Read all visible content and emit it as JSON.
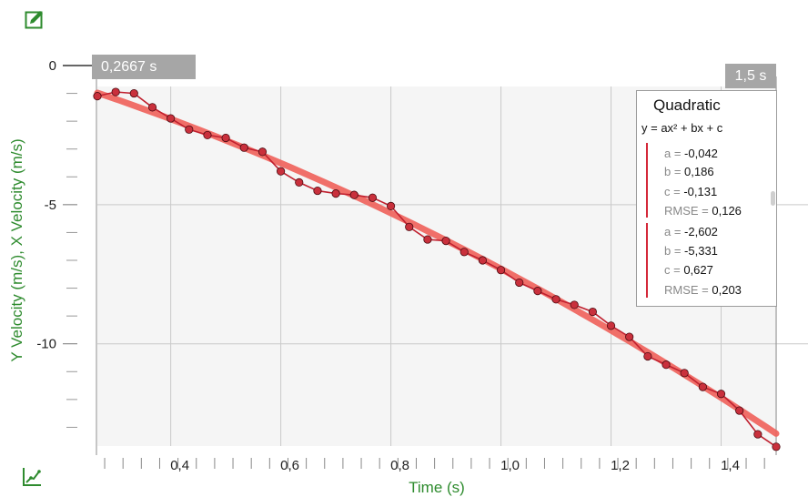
{
  "toolbar": {
    "edit_icon": "pencil-square-icon",
    "graph_tools_icon": "curve-fit-icon"
  },
  "markers": {
    "start_time": "0,2667 s",
    "end_time": "1,5 s"
  },
  "fit_panel": {
    "title": "Quadratic",
    "equation": "y = ax² + bx + c",
    "groups": [
      {
        "a_label": "a = ",
        "a": "-0,042",
        "b_label": "b = ",
        "b": "0,186",
        "c_label": "c = ",
        "c": "-0,131",
        "rmse_label": "RMSE = ",
        "rmse": "0,126"
      },
      {
        "a_label": "a = ",
        "a": "-2,602",
        "b_label": "b = ",
        "b": "-5,331",
        "c_label": "c = ",
        "c": "0,627",
        "rmse_label": "RMSE = ",
        "rmse": "0,203"
      }
    ]
  },
  "colors": {
    "data_line": "#c0202f",
    "data_point": "#c9303c",
    "fit_line": "#f0605a",
    "plot_bg": "#f5f5f5",
    "grid": "#c9c9c9",
    "axis_title": "#2e8b2e"
  },
  "chart_data": {
    "type": "line",
    "xlabel": "Time (s)",
    "ylabel": "Y Velocity (m/s), X Velocity (m/s)",
    "xlim": [
      0.2667,
      1.5
    ],
    "ylim": [
      -14,
      0
    ],
    "x_ticks": [
      0.4,
      0.6,
      0.8,
      1.0,
      1.2,
      1.4
    ],
    "x_tick_labels": [
      "0,4",
      "0,6",
      "0,8",
      "1,0",
      "1,2",
      "1,4"
    ],
    "y_ticks": [
      0,
      -5,
      -10
    ],
    "y_tick_labels": [
      "0",
      "-5",
      "-10"
    ],
    "grid": true,
    "series": [
      {
        "x": [
          0.2667,
          0.3,
          0.3333,
          0.3667,
          0.4,
          0.4333,
          0.4667,
          0.5,
          0.5333,
          0.5667,
          0.6,
          0.6333,
          0.6667,
          0.7,
          0.7333,
          0.7667,
          0.8,
          0.8333,
          0.8667,
          0.9,
          0.9333,
          0.9667,
          1.0,
          1.0333,
          1.0667,
          1.1,
          1.1333,
          1.1667,
          1.2,
          1.2333,
          1.2667,
          1.3,
          1.3333,
          1.3667,
          1.4,
          1.4333,
          1.4667,
          1.5
        ],
        "y": [
          -1.1,
          -0.95,
          -1.0,
          -1.5,
          -1.9,
          -2.3,
          -2.5,
          -2.6,
          -2.95,
          -3.1,
          -3.8,
          -4.2,
          -4.5,
          -4.6,
          -4.65,
          -4.75,
          -5.05,
          -5.8,
          -6.25,
          -6.3,
          -6.7,
          -7.0,
          -7.35,
          -7.8,
          -8.1,
          -8.4,
          -8.6,
          -8.85,
          -9.35,
          -9.75,
          -10.45,
          -10.75,
          -11.05,
          -11.55,
          -11.8,
          -12.4,
          -13.25,
          -13.7
        ]
      }
    ],
    "fit": {
      "model": "quadratic",
      "a": -2.602,
      "b": -5.331,
      "c": 0.627
    }
  }
}
